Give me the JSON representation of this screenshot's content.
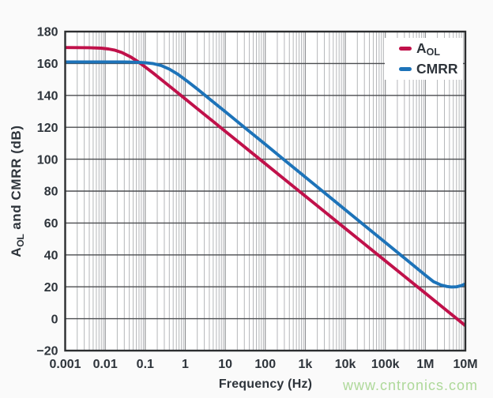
{
  "figure": {
    "background": "#fafafa"
  },
  "watermark": {
    "text": "www.cntronics.com",
    "color": "#aed99a"
  },
  "chart_data": {
    "type": "line",
    "title": "",
    "xlabel": "Frequency (Hz)",
    "ylabel": "AOL and CMRR (dB)",
    "ylabel_parts": [
      {
        "text": "A",
        "sub": false
      },
      {
        "text": "OL",
        "sub": true
      },
      {
        "text": " and CMRR (dB)",
        "sub": false
      }
    ],
    "x_scale": "log",
    "y_scale": "linear",
    "xlim": [
      0.001,
      10000000
    ],
    "ylim": [
      -20,
      180
    ],
    "grid": {
      "minor_vertical": true,
      "minor_color": "#b4b6b9",
      "major_vertical_color": "#87898c",
      "horizontal_color": "#4b4d50",
      "border_color": "#2c2e30",
      "plot_background": "#ffffff"
    },
    "x_ticks": {
      "values": [
        0.001,
        0.01,
        0.1,
        1,
        10,
        100,
        1000,
        10000,
        100000,
        1000000,
        10000000
      ],
      "labels": [
        "0.001",
        "0.01",
        "0.1",
        "1",
        "10",
        "100",
        "1k",
        "10k",
        "100k",
        "1M",
        "10M"
      ]
    },
    "y_ticks": {
      "values": [
        180,
        160,
        140,
        120,
        100,
        80,
        60,
        40,
        20,
        0,
        -20
      ],
      "labels": [
        "180",
        "160",
        "140",
        "120",
        "100",
        "80",
        "60",
        "40",
        "20",
        "0",
        "−20"
      ]
    },
    "tick_label_color": "#2e343b",
    "legend_position": "top-right",
    "series": [
      {
        "name": "AOL",
        "label_main": "A",
        "label_sub": "OL",
        "color": "#c0114a",
        "points": [
          [
            0.001,
            170.0
          ],
          [
            0.004,
            169.9
          ],
          [
            0.008,
            169.6
          ],
          [
            0.012,
            169.1
          ],
          [
            0.017,
            168.4
          ],
          [
            0.026,
            166.9
          ],
          [
            0.042,
            164.3
          ],
          [
            0.065,
            161.3
          ],
          [
            0.1,
            157.8
          ],
          [
            0.16,
            153.9
          ],
          [
            0.28,
            149.0
          ],
          [
            0.5,
            143.9
          ],
          [
            1,
            137.8
          ],
          [
            2,
            131.7
          ],
          [
            5,
            123.6
          ],
          [
            10,
            117.5
          ],
          [
            30,
            107.8
          ],
          [
            100,
            97.2
          ],
          [
            300,
            87.5
          ],
          [
            1000,
            76.9
          ],
          [
            3000,
            67.2
          ],
          [
            10000,
            56.6
          ],
          [
            30000,
            46.9
          ],
          [
            100000,
            36.3
          ],
          [
            300000,
            26.6
          ],
          [
            1000000,
            16.0
          ],
          [
            3000000,
            6.3
          ],
          [
            10000000,
            -4.3
          ]
        ]
      },
      {
        "name": "CMRR",
        "label_main": "CMRR",
        "label_sub": "",
        "color": "#1d73b9",
        "points": [
          [
            0.001,
            161.0
          ],
          [
            0.004,
            161.0
          ],
          [
            0.01,
            161.0
          ],
          [
            0.03,
            161.0
          ],
          [
            0.06,
            160.8
          ],
          [
            0.1,
            160.5
          ],
          [
            0.16,
            159.9
          ],
          [
            0.25,
            158.7
          ],
          [
            0.4,
            156.5
          ],
          [
            0.65,
            153.3
          ],
          [
            1.1,
            149.1
          ],
          [
            2,
            144.0
          ],
          [
            5,
            135.9
          ],
          [
            10,
            129.8
          ],
          [
            30,
            120.0
          ],
          [
            100,
            109.3
          ],
          [
            300,
            99.5
          ],
          [
            1000,
            88.8
          ],
          [
            3000,
            79.0
          ],
          [
            10000,
            68.3
          ],
          [
            30000,
            58.5
          ],
          [
            100000,
            47.8
          ],
          [
            300000,
            38.0
          ],
          [
            1000000,
            27.3
          ],
          [
            1600000,
            23.2
          ],
          [
            2500000,
            21.1
          ],
          [
            3500000,
            20.2
          ],
          [
            4500000,
            19.9
          ],
          [
            6000000,
            20.0
          ],
          [
            8000000,
            20.8
          ],
          [
            10000000,
            21.8
          ]
        ]
      }
    ]
  }
}
